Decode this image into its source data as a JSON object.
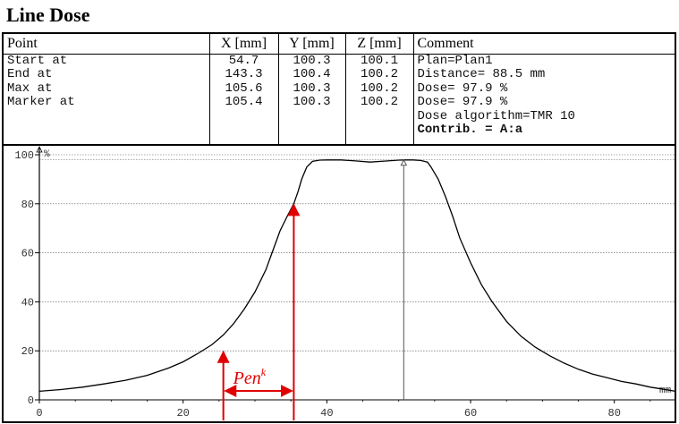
{
  "window": {
    "title": "Line Dose"
  },
  "table": {
    "headers": [
      "Point",
      "X [mm]",
      "Y [mm]",
      "Z [mm]",
      "Comment"
    ],
    "rows": [
      {
        "point": "Start at",
        "x": "54.7",
        "y": "100.3",
        "z": "100.1"
      },
      {
        "point": "End at",
        "x": "143.3",
        "y": "100.4",
        "z": "100.2"
      },
      {
        "point": "Max at",
        "x": "105.6",
        "y": "100.3",
        "z": "100.2"
      },
      {
        "point": "Marker at",
        "x": "105.4",
        "y": "100.3",
        "z": "100.2"
      }
    ],
    "comments": [
      "Plan=Plan1",
      "Distance= 88.5 mm",
      "Dose= 97.9 %",
      "Dose= 97.9 %",
      "Dose algorithm=TMR 10",
      "Contrib. = A:a"
    ]
  },
  "chart_data": {
    "type": "line",
    "title": "",
    "xlabel": "mm",
    "ylabel": "%",
    "xlim": [
      0,
      88.5
    ],
    "ylim": [
      0,
      100
    ],
    "xticks": [
      0,
      20,
      40,
      60,
      80
    ],
    "yticks": [
      0,
      20,
      40,
      60,
      80,
      100
    ],
    "grid": true,
    "series": [
      {
        "x": [
          0,
          3,
          6,
          9,
          12,
          15,
          18,
          20,
          22,
          24,
          25.6,
          27,
          28.5,
          30,
          31.5,
          32.5,
          33.5,
          34.5,
          35.4,
          36,
          36.5,
          37.2,
          38,
          39,
          40,
          42,
          44,
          46,
          48,
          50,
          51,
          52,
          53,
          54,
          54.5,
          55.5,
          56.5,
          57.5,
          58.5,
          60,
          61.5,
          63,
          65,
          67,
          69,
          71,
          73,
          75,
          77,
          79,
          81,
          83,
          85,
          86.5,
          88.5
        ],
        "y": [
          3.5,
          4.2,
          5.2,
          6.5,
          8,
          10,
          13,
          15.5,
          18.8,
          22.5,
          26.5,
          31,
          37,
          44,
          53,
          61,
          69,
          75,
          80,
          85,
          90,
          95,
          97.3,
          97.8,
          97.9,
          97.9,
          97.5,
          97,
          97.4,
          97.8,
          97.9,
          97.9,
          97.7,
          97,
          95,
          90,
          83,
          75,
          66,
          56,
          47,
          40,
          32,
          26,
          21.5,
          18,
          15,
          12.5,
          10.5,
          9,
          7.5,
          6.5,
          5.2,
          4.5,
          3.5
        ]
      }
    ],
    "annotations": [
      {
        "text": "Pen",
        "superscript": "k",
        "color": "#e00000"
      }
    ]
  }
}
